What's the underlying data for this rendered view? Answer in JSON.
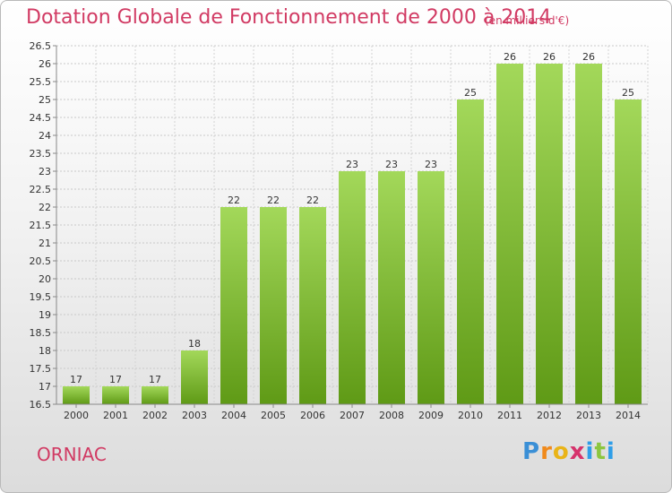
{
  "header": {
    "title": "Dotation Globale de Fonctionnement de 2000 à 2014",
    "unit": "(en milliers d'€)"
  },
  "footer": {
    "commune": "ORNIAC",
    "logo": {
      "letters": [
        "P",
        "r",
        "o",
        "x",
        "i",
        "t",
        "i"
      ],
      "colors": [
        "#3a8fd6",
        "#f08a1c",
        "#e9b418",
        "#d6336c",
        "#2f9ee8",
        "#8cc63f",
        "#2f9ee8"
      ]
    }
  },
  "chart_data": {
    "type": "bar",
    "title": "Dotation Globale de Fonctionnement de 2000 à 2014",
    "subtitle": "(en milliers d'€)",
    "categories": [
      "2000",
      "2001",
      "2002",
      "2003",
      "2004",
      "2005",
      "2006",
      "2007",
      "2008",
      "2009",
      "2010",
      "2011",
      "2012",
      "2013",
      "2014"
    ],
    "values": [
      17,
      17,
      17,
      18,
      22,
      22,
      22,
      23,
      23,
      23,
      25,
      26,
      26,
      26,
      25
    ],
    "ylim": [
      16.5,
      26.5
    ],
    "yticks": [
      "16.5",
      "17",
      "17.5",
      "18",
      "18.5",
      "19",
      "19.5",
      "20",
      "20.5",
      "21",
      "21.5",
      "22",
      "22.5",
      "23",
      "23.5",
      "24",
      "24.5",
      "25",
      "25.5",
      "26",
      "26.5"
    ],
    "grid": true,
    "bar_color": "#8cc63f",
    "xlabel": "",
    "ylabel": ""
  }
}
